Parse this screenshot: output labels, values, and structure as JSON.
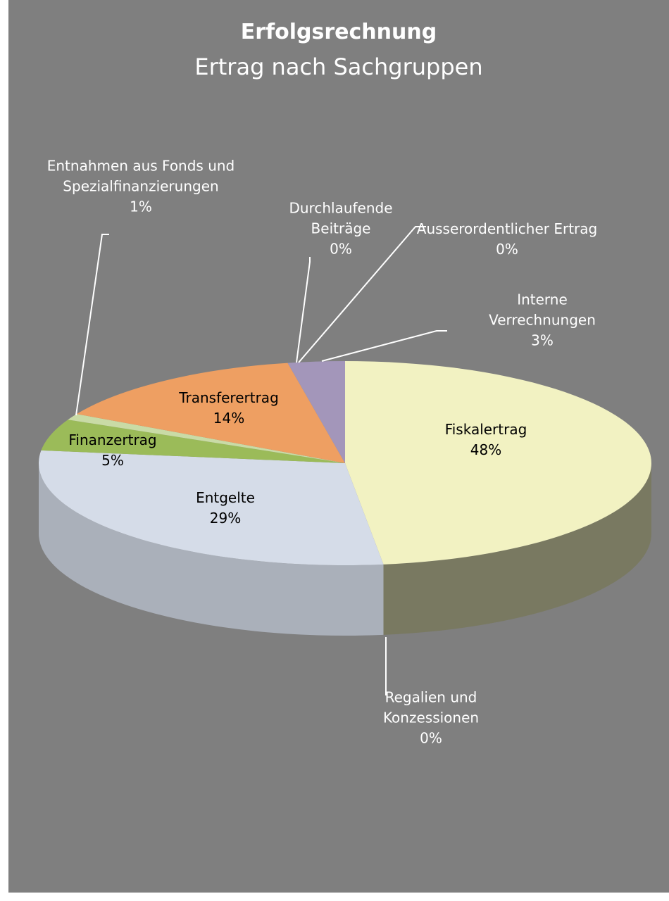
{
  "chart_data": {
    "type": "pie",
    "title": "Erfolgsrechnung",
    "subtitle": "Ertrag nach Sachgruppen",
    "categories": [
      "Fiskalertrag",
      "Regalien und Konzessionen",
      "Entgelte",
      "Finanzertrag",
      "Entnahmen aus Fonds und Spezialfinanzierungen",
      "Transferertrag",
      "Durchlaufende Beiträge",
      "Ausserordentlicher Ertrag",
      "Interne Verrechnungen"
    ],
    "values": [
      48,
      0,
      29,
      5,
      1,
      14,
      0,
      0,
      3
    ],
    "value_labels": [
      "48%",
      "0%",
      "29%",
      "5%",
      "1%",
      "14%",
      "0%",
      "0%",
      "3%"
    ],
    "colors": [
      "#f2f2c2",
      "#8eaadb",
      "#d5dce8",
      "#9bbb59",
      "#c9dba6",
      "#ee9f62",
      "#f0b080",
      "#c0c0c0",
      "#a396ba"
    ]
  }
}
